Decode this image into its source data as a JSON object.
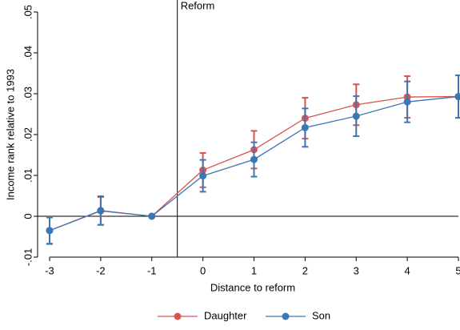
{
  "chart_data": {
    "type": "line",
    "x_label": "Distance to reform",
    "y_label": "Income rank relative to 1993",
    "x": [
      -3,
      -2,
      -1,
      0,
      1,
      2,
      3,
      4,
      5
    ],
    "xlim": [
      -3,
      5
    ],
    "xticks": [
      -3,
      -2,
      -1,
      0,
      1,
      2,
      3,
      4,
      5
    ],
    "ylim": [
      -0.01,
      0.05
    ],
    "yticks": [
      {
        "value": -0.01,
        "label": "-.01"
      },
      0,
      {
        "value": 0.01,
        "label": ".01"
      },
      {
        "value": 0.02,
        "label": ".02"
      },
      {
        "value": 0.03,
        "label": ".03"
      },
      {
        "value": 0.04,
        "label": ".04"
      },
      {
        "value": 0.05,
        "label": ".05"
      }
    ],
    "vline": -0.5,
    "vline_label": "Reform",
    "hline": 0,
    "legend": "bottom",
    "series": [
      {
        "name": "Daughter",
        "color": "#d9534f",
        "values": [
          -0.0035,
          0.0013,
          0,
          0.0113,
          0.0163,
          0.024,
          0.0273,
          0.0292,
          0.0293
        ],
        "errors": [
          0.0033,
          0.0034,
          0,
          0.0042,
          0.0046,
          0.005,
          0.005,
          0.0051,
          0.0052
        ]
      },
      {
        "name": "Son",
        "color": "#3a78b5",
        "values": [
          -0.0035,
          0.0014,
          0,
          0.0099,
          0.0139,
          0.0217,
          0.0245,
          0.028,
          0.0293
        ],
        "errors": [
          0.0032,
          0.0035,
          0,
          0.0039,
          0.0042,
          0.0047,
          0.0049,
          0.005,
          0.0052
        ]
      }
    ]
  }
}
